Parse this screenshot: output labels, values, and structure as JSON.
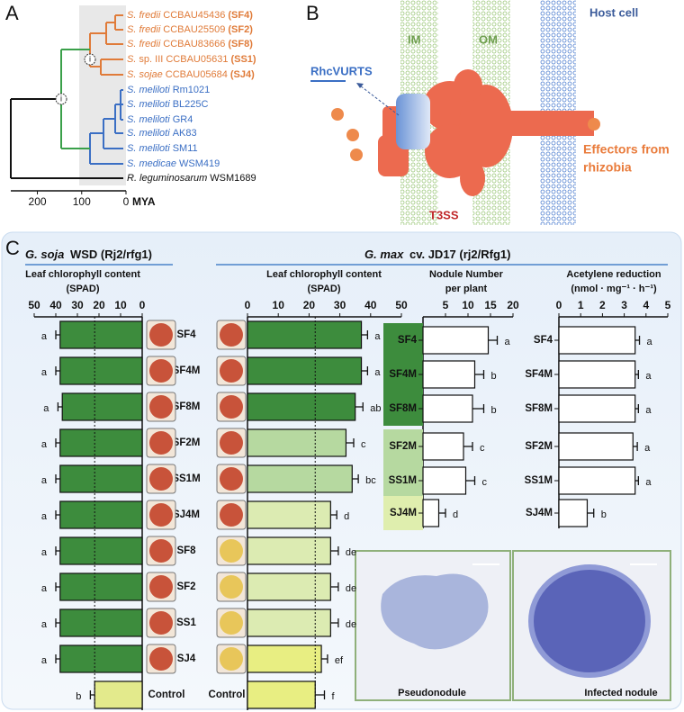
{
  "panels": {
    "a": "A",
    "b": "B",
    "c": "C"
  },
  "phylogeny": {
    "taxa": [
      {
        "name": "S. fredii",
        "strain": "CCBAU45436",
        "code": "(SF4)",
        "color": "#e07b39"
      },
      {
        "name": "S. fredii",
        "strain": "CCBAU25509",
        "code": "(SF2)",
        "color": "#e07b39"
      },
      {
        "name": "S. fredii",
        "strain": "CCBAU83666",
        "code": "(SF8)",
        "color": "#e07b39"
      },
      {
        "name": "S.",
        "strain": "sp. III CCBAU05631",
        "code": "(SS1)",
        "color": "#e07b39"
      },
      {
        "name": "S. sojae",
        "strain": "CCBAU05684",
        "code": "(SJ4)",
        "color": "#e07b39"
      },
      {
        "name": "S. meliloti",
        "strain": "Rm1021",
        "color": "#3b6fc4"
      },
      {
        "name": "S. meliloti",
        "strain": "BL225C",
        "color": "#3b6fc4"
      },
      {
        "name": "S. meliloti",
        "strain": "GR4",
        "color": "#3b6fc4"
      },
      {
        "name": "S. meliloti",
        "strain": "AK83",
        "color": "#3b6fc4"
      },
      {
        "name": "S. meliloti",
        "strain": "SM11",
        "color": "#3b6fc4"
      },
      {
        "name": "S. medicae",
        "strain": "WSM419",
        "color": "#3b6fc4"
      },
      {
        "name": "R. leguminosarum",
        "strain": "WSM1689",
        "color": "#111111"
      }
    ],
    "node_labels": [
      "i",
      "i"
    ],
    "xlim": [
      260,
      0
    ],
    "xticks": [
      200,
      100,
      0
    ],
    "xlabel": "MYA"
  },
  "diagram": {
    "im": "IM",
    "om": "OM",
    "host": "Host cell",
    "rhc": "RhcVURTS",
    "t3ss": "T3SS",
    "effectors": [
      "Effectors from",
      "rhizobia"
    ]
  },
  "panel_c": {
    "soja_header": {
      "species": "G. soja",
      "cultivar": "WSD (Rj2/rfg1)"
    },
    "max_header": {
      "species": "G. max",
      "cultivar": "cv. JD17 (rj2/Rfg1)"
    },
    "micrographs": [
      "Pseudonodule",
      "Infected nodule"
    ]
  },
  "chart_data": [
    {
      "type": "bar",
      "orientation": "horizontal",
      "title": [
        "Leaf chlorophyll content",
        "(SPAD)"
      ],
      "categories": [
        "SF4",
        "SF4M",
        "SF8M",
        "SF2M",
        "SS1M",
        "SJ4M",
        "SF8",
        "SF2",
        "SS1",
        "SJ4",
        "Control"
      ],
      "values": [
        38,
        38,
        37,
        38,
        38,
        38,
        38,
        38,
        38,
        38,
        22
      ],
      "errors": [
        2,
        2,
        2,
        2,
        2,
        2,
        2,
        2,
        2,
        2,
        2
      ],
      "letters": [
        "a",
        "a",
        "a",
        "a",
        "a",
        "a",
        "a",
        "a",
        "a",
        "a",
        "b"
      ],
      "colors": [
        "#3d8c3d",
        "#3d8c3d",
        "#3d8c3d",
        "#3d8c3d",
        "#3d8c3d",
        "#3d8c3d",
        "#3d8c3d",
        "#3d8c3d",
        "#3d8c3d",
        "#3d8c3d",
        "#e3ea8c"
      ],
      "xlim": [
        50,
        0
      ],
      "xticks": [
        50,
        40,
        30,
        20,
        10,
        0
      ]
    },
    {
      "type": "bar",
      "orientation": "horizontal",
      "title": [
        "Leaf chlorophyll content",
        "(SPAD)"
      ],
      "categories": [
        null,
        null,
        null,
        null,
        null,
        null,
        null,
        null,
        null,
        null,
        "Control"
      ],
      "values": [
        37,
        37,
        35,
        32,
        34,
        27,
        27,
        27,
        27,
        24,
        22
      ],
      "errors": [
        2,
        2,
        2.5,
        2.5,
        2,
        2,
        2.5,
        2.5,
        2.5,
        2,
        3
      ],
      "letters": [
        "a",
        "a",
        "ab",
        "c",
        "bc",
        "d",
        "de",
        "de",
        "de",
        "ef",
        "f"
      ],
      "colors": [
        "#3d8c3d",
        "#3d8c3d",
        "#3d8c3d",
        "#b6d9a0",
        "#b6d9a0",
        "#dcebb2",
        "#dcebb2",
        "#dcebb2",
        "#dcebb2",
        "#e8ee82",
        "#e8ee82"
      ],
      "xlim": [
        0,
        50
      ],
      "xticks": [
        0,
        10,
        20,
        30,
        40,
        50
      ]
    },
    {
      "type": "bar",
      "orientation": "horizontal",
      "title": [
        "Nodule Number",
        "per plant"
      ],
      "categories": [
        "SF4",
        "SF4M",
        "SF8M",
        "SF2M",
        "SS1M",
        "SJ4M"
      ],
      "values": [
        14.5,
        11.5,
        11,
        9,
        9.5,
        3.5
      ],
      "errors": [
        2,
        2,
        2.5,
        2,
        2,
        1.5
      ],
      "letters": [
        "a",
        "b",
        "b",
        "c",
        "c",
        "d"
      ],
      "label_colors": [
        "#3d8c3d",
        "#3d8c3d",
        "#3d8c3d",
        "#b6d9a0",
        "#b6d9a0",
        "#dfeeae"
      ],
      "color": "#ffffff",
      "xlim": [
        0,
        20
      ],
      "xticks": [
        5,
        10,
        15,
        20
      ]
    },
    {
      "type": "bar",
      "orientation": "horizontal",
      "title": [
        "Acetylene reduction",
        "(nmol · mg⁻¹ · h⁻¹)"
      ],
      "categories": [
        "SF4",
        "SF4M",
        "SF8M",
        "SF2M",
        "SS1M",
        "SJ4M"
      ],
      "values": [
        3.5,
        3.5,
        3.5,
        3.4,
        3.5,
        1.3
      ],
      "errors": [
        0.2,
        0.15,
        0.15,
        0.2,
        0.15,
        0.3
      ],
      "letters": [
        "a",
        "a",
        "a",
        "a",
        "a",
        "b"
      ],
      "color": "#ffffff",
      "xlim": [
        0,
        5
      ],
      "xticks": [
        0,
        1,
        2,
        3,
        4,
        5
      ]
    }
  ]
}
